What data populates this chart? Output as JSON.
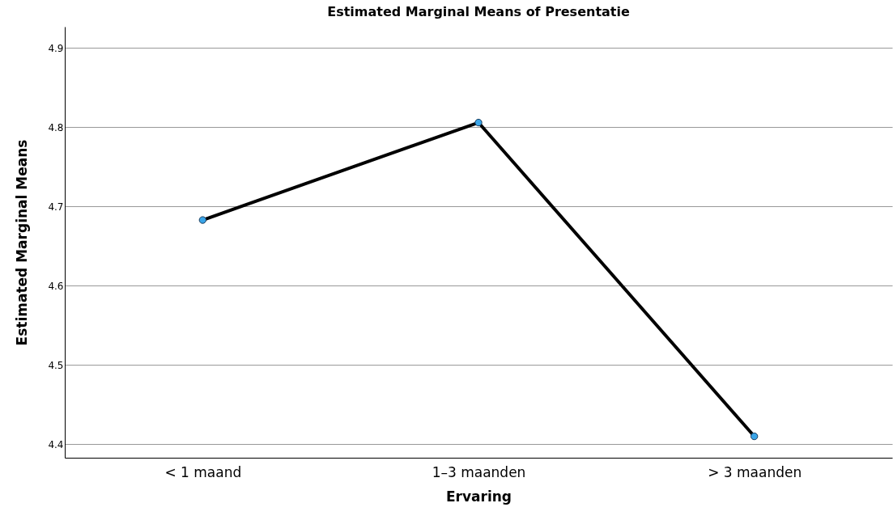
{
  "chart_data": {
    "type": "line",
    "title": "Estimated Marginal Means of Presentatie",
    "xlabel": "Ervaring",
    "ylabel": "Estimated Marginal Means",
    "categories": [
      "< 1 maand",
      "1–3 maanden",
      "> 3 maanden"
    ],
    "series": [
      {
        "color": "#000000",
        "values": [
          4.683,
          4.806,
          4.41
        ]
      }
    ],
    "ylim": [
      4.383,
      4.927
    ],
    "yticks": [
      4.4,
      4.5,
      4.6,
      4.7,
      4.8,
      4.9
    ],
    "grid": "y",
    "marker": "circle",
    "line_style": "solid",
    "legend": false
  }
}
